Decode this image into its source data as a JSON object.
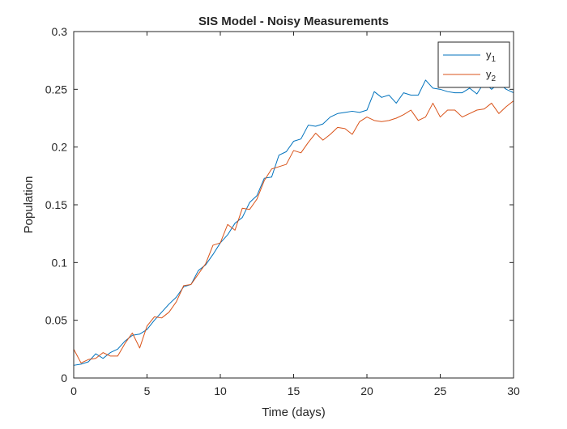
{
  "chart_data": {
    "type": "line",
    "title": "SIS Model - Noisy Measurements",
    "xlabel": "Time (days)",
    "ylabel": "Population",
    "xlim": [
      0,
      30
    ],
    "ylim": [
      0,
      0.3
    ],
    "xticks": [
      0,
      5,
      10,
      15,
      20,
      25,
      30
    ],
    "xtick_labels": [
      "0",
      "5",
      "10",
      "15",
      "20",
      "25",
      "30"
    ],
    "yticks": [
      0,
      0.05,
      0.1,
      0.15,
      0.2,
      0.25,
      0.3
    ],
    "ytick_labels": [
      "0",
      "0.05",
      "0.1",
      "0.15",
      "0.2",
      "0.25",
      "0.3"
    ],
    "grid": false,
    "box": true,
    "legend_position": "top-right",
    "x": [
      0,
      0.5,
      1,
      1.5,
      2,
      2.5,
      3,
      3.5,
      4,
      4.5,
      5,
      5.5,
      6,
      6.5,
      7,
      7.5,
      8,
      8.5,
      9,
      9.5,
      10,
      10.5,
      11,
      11.5,
      12,
      12.5,
      13,
      13.5,
      14,
      14.5,
      15,
      15.5,
      16,
      16.5,
      17,
      17.5,
      18,
      18.5,
      19,
      19.5,
      20,
      20.5,
      21,
      21.5,
      22,
      22.5,
      23,
      23.5,
      24,
      24.5,
      25,
      25.5,
      26,
      26.5,
      27,
      27.5,
      28,
      28.5,
      29,
      29.5,
      30
    ],
    "series": [
      {
        "name": "y",
        "subscript": "1",
        "color": "#0072BD",
        "values": [
          0.011,
          0.012,
          0.014,
          0.021,
          0.017,
          0.022,
          0.025,
          0.032,
          0.037,
          0.038,
          0.042,
          0.05,
          0.057,
          0.064,
          0.07,
          0.079,
          0.081,
          0.093,
          0.098,
          0.107,
          0.117,
          0.124,
          0.134,
          0.139,
          0.152,
          0.158,
          0.173,
          0.174,
          0.193,
          0.196,
          0.205,
          0.207,
          0.219,
          0.218,
          0.22,
          0.226,
          0.229,
          0.23,
          0.231,
          0.23,
          0.232,
          0.248,
          0.243,
          0.245,
          0.238,
          0.247,
          0.245,
          0.245,
          0.258,
          0.251,
          0.25,
          0.248,
          0.247,
          0.247,
          0.251,
          0.246,
          0.256,
          0.25,
          0.255,
          0.25,
          0.247
        ]
      },
      {
        "name": "y",
        "subscript": "2",
        "color": "#D95319",
        "values": [
          0.025,
          0.013,
          0.016,
          0.017,
          0.022,
          0.019,
          0.019,
          0.03,
          0.039,
          0.026,
          0.045,
          0.053,
          0.052,
          0.057,
          0.066,
          0.08,
          0.081,
          0.09,
          0.099,
          0.115,
          0.117,
          0.133,
          0.128,
          0.147,
          0.146,
          0.155,
          0.171,
          0.181,
          0.183,
          0.185,
          0.197,
          0.195,
          0.204,
          0.212,
          0.206,
          0.211,
          0.217,
          0.216,
          0.211,
          0.222,
          0.226,
          0.223,
          0.222,
          0.223,
          0.225,
          0.228,
          0.232,
          0.223,
          0.226,
          0.238,
          0.226,
          0.232,
          0.232,
          0.226,
          0.229,
          0.232,
          0.233,
          0.238,
          0.229,
          0.235,
          0.24
        ]
      }
    ]
  }
}
